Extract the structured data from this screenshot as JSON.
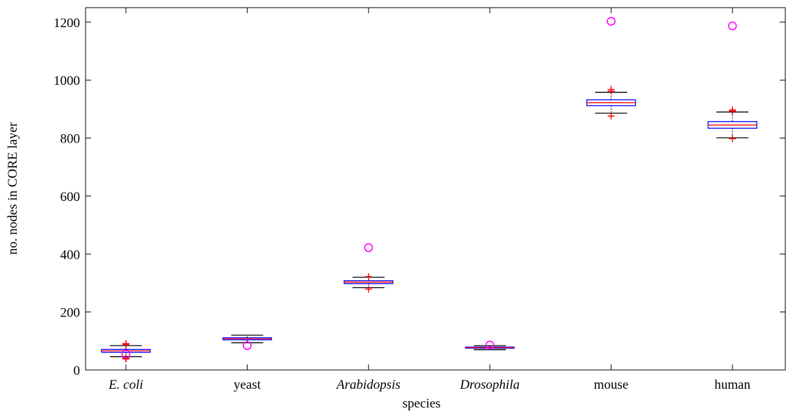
{
  "chart_data": {
    "type": "box",
    "title": "",
    "xlabel": "species",
    "ylabel": "no. nodes in CORE layer",
    "ylim": [
      0,
      1250
    ],
    "yticks": [
      0,
      200,
      400,
      600,
      800,
      1000,
      1200
    ],
    "grid": false,
    "categories": [
      {
        "label": "E. coli",
        "italic": true
      },
      {
        "label": "yeast",
        "italic": false
      },
      {
        "label": "Arabidopsis",
        "italic": true
      },
      {
        "label": "Drosophila",
        "italic": true
      },
      {
        "label": "mouse",
        "italic": false
      },
      {
        "label": "human",
        "italic": false
      }
    ],
    "boxes": [
      {
        "whisker_low": 46,
        "q1": 61,
        "median": 66,
        "q3": 71,
        "whisker_high": 84,
        "outliers": [
          38,
          40,
          42,
          88,
          91
        ],
        "observed": 55
      },
      {
        "whisker_low": 94,
        "q1": 104,
        "median": 108,
        "q3": 111,
        "whisker_high": 120,
        "outliers": [],
        "observed": 84
      },
      {
        "whisker_low": 284,
        "q1": 298,
        "median": 303,
        "q3": 308,
        "whisker_high": 320,
        "outliers": [
          279,
          322
        ],
        "observed": 422
      },
      {
        "whisker_low": 70,
        "q1": 75,
        "median": 77,
        "q3": 79,
        "whisker_high": 84,
        "outliers": [],
        "observed": 86
      },
      {
        "whisker_low": 886,
        "q1": 912,
        "median": 922,
        "q3": 932,
        "whisker_high": 958,
        "outliers": [
          876,
          962,
          968
        ],
        "observed": 1203
      },
      {
        "whisker_low": 801,
        "q1": 834,
        "median": 845,
        "q3": 857,
        "whisker_high": 890,
        "outliers": [
          798,
          893,
          897
        ],
        "observed": 1187
      }
    ],
    "colors": {
      "box": "#0000ff",
      "median": "#ff0000",
      "whisker": "#000000",
      "outlier": "#ff0000",
      "observed": "#ff00ff",
      "axis": "#000000"
    }
  }
}
